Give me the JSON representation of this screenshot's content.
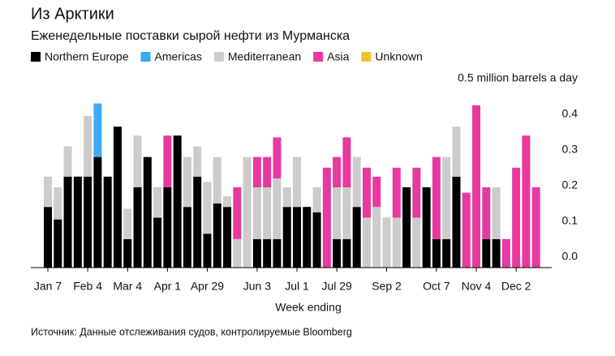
{
  "chart_data": {
    "type": "bar",
    "stacked": true,
    "title": "Из Арктики",
    "subtitle": "Еженедельные поставки сырой нефти из Мурманска",
    "x_label": "Week ending",
    "source": "Источник: Данные отслеживания судов, контролируемые Bloomberg",
    "categories": [
      "Jan 7",
      null,
      null,
      null,
      "Feb 4",
      null,
      null,
      null,
      "Mar 4",
      null,
      null,
      null,
      "Apr 1",
      null,
      null,
      null,
      "Apr 29",
      null,
      null,
      null,
      null,
      "Jun 3",
      null,
      null,
      null,
      "Jul 1",
      null,
      null,
      null,
      "Jul 29",
      null,
      null,
      null,
      null,
      "Sep 2",
      null,
      null,
      null,
      null,
      "Oct 7",
      null,
      null,
      null,
      "Nov 4",
      null,
      null,
      null,
      "Dec 2",
      null,
      null
    ],
    "series": [
      {
        "name": "Northern Europe",
        "color": "#000000",
        "values": [
          0.17,
          0.135,
          0.255,
          0.255,
          0.255,
          0.31,
          0.255,
          0.395,
          0.08,
          0.225,
          0.31,
          0.14,
          0.225,
          0.37,
          0.17,
          0.255,
          0.095,
          0.18,
          0.17,
          0,
          0,
          0.08,
          0.08,
          0.08,
          0.17,
          0.17,
          0.17,
          0.155,
          0,
          0.08,
          0.08,
          0.17,
          0,
          0,
          0,
          0,
          0.225,
          0,
          0.225,
          0.08,
          0.08,
          0.255,
          0,
          0,
          0.08,
          0.08,
          0,
          0,
          0,
          0
        ]
      },
      {
        "name": "Americas",
        "color": "#3fa9f5",
        "values": [
          0,
          0,
          0,
          0,
          0,
          0.15,
          0,
          0,
          0,
          0,
          0,
          0,
          0,
          0,
          0,
          0,
          0,
          0,
          0,
          0,
          0,
          0,
          0,
          0,
          0,
          0,
          0,
          0,
          0,
          0,
          0,
          0,
          0,
          0,
          0,
          0,
          0,
          0,
          0,
          0,
          0,
          0,
          0,
          0,
          0,
          0,
          0,
          0,
          0,
          0
        ]
      },
      {
        "name": "Mediterranean",
        "color": "#cccccc",
        "values": [
          0.085,
          0.09,
          0.085,
          0,
          0.17,
          0,
          0,
          0,
          0.085,
          0.145,
          0,
          0.085,
          0,
          0,
          0.14,
          0.085,
          0.145,
          0.13,
          0.03,
          0.08,
          0.31,
          0.145,
          0.145,
          0.17,
          0.055,
          0.14,
          0,
          0.07,
          0,
          0.145,
          0.145,
          0.14,
          0.14,
          0.17,
          0.14,
          0.14,
          0,
          0.14,
          0,
          0,
          0.23,
          0.14,
          0,
          0,
          0,
          0.145,
          0,
          0,
          0,
          0
        ]
      },
      {
        "name": "Asia",
        "color": "#e8399e",
        "values": [
          0,
          0,
          0,
          0,
          0,
          0,
          0,
          0,
          0,
          0,
          0,
          0,
          0.145,
          0,
          0,
          0,
          0,
          0,
          0,
          0.145,
          0,
          0.085,
          0.085,
          0.115,
          0,
          0,
          0,
          0,
          0.28,
          0.085,
          0.14,
          0,
          0.14,
          0.085,
          0,
          0.14,
          0,
          0.14,
          0,
          0.23,
          0,
          0,
          0.21,
          0.455,
          0.145,
          0,
          0.08,
          0.28,
          0.37,
          0.225
        ]
      },
      {
        "name": "Unknown",
        "color": "#f2c12e",
        "values": [
          0,
          0,
          0,
          0,
          0,
          0,
          0,
          0,
          0,
          0,
          0,
          0,
          0,
          0,
          0,
          0,
          0,
          0,
          0,
          0,
          0,
          0,
          0,
          0,
          0,
          0,
          0,
          0,
          0,
          0,
          0,
          0,
          0,
          0,
          0,
          0,
          0,
          0,
          0,
          0,
          0,
          0,
          0,
          0,
          0,
          0,
          0,
          0,
          0,
          0
        ]
      }
    ],
    "ylim": [
      0,
      0.5
    ],
    "yticks": [
      {
        "value": 0,
        "label": "0.0"
      },
      0.1,
      0.2,
      0.3,
      0.4,
      {
        "value": 0.5,
        "label": "0.5 million barrels a day"
      }
    ],
    "grid": false
  }
}
